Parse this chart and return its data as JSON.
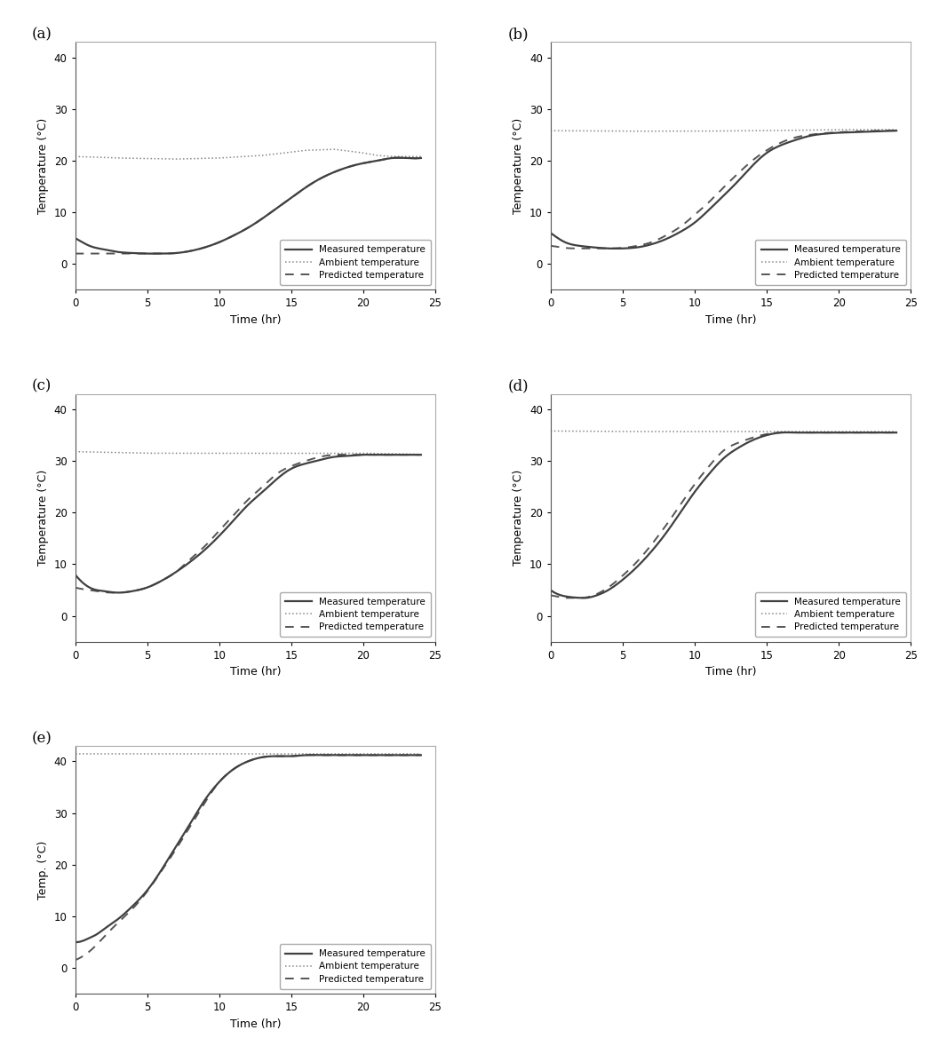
{
  "panels": [
    {
      "label": "(a)",
      "ylabel": "Temperature (°C)",
      "ylim": [
        -5,
        43
      ],
      "yticks": [
        0,
        10,
        20,
        30,
        40
      ],
      "measured_t": [
        0,
        0.5,
        1,
        2,
        3,
        4,
        5,
        6,
        7,
        8,
        9,
        10,
        11,
        12,
        13,
        14,
        15,
        16,
        17,
        18,
        19,
        20,
        21,
        22,
        23,
        24
      ],
      "measured_y": [
        5.0,
        4.2,
        3.5,
        2.8,
        2.3,
        2.1,
        2.0,
        2.0,
        2.1,
        2.5,
        3.2,
        4.2,
        5.5,
        7.0,
        8.8,
        10.8,
        12.8,
        14.8,
        16.5,
        17.8,
        18.8,
        19.5,
        20.0,
        20.5,
        20.5,
        20.5
      ],
      "predicted_t": [
        0,
        0.5,
        1,
        2,
        3,
        4,
        5,
        6,
        7,
        8,
        9,
        10,
        11,
        12,
        13,
        14,
        15,
        16,
        17,
        18,
        19,
        20,
        21,
        22,
        23,
        24
      ],
      "predicted_y": [
        2.0,
        2.0,
        2.0,
        2.0,
        2.0,
        2.0,
        2.0,
        2.0,
        2.1,
        2.5,
        3.2,
        4.2,
        5.5,
        7.0,
        8.8,
        10.8,
        12.8,
        14.8,
        16.5,
        17.8,
        18.8,
        19.5,
        20.0,
        20.5,
        20.5,
        20.5
      ],
      "ambient_t": [
        0,
        3,
        7,
        10,
        13,
        16,
        18,
        20,
        21,
        22,
        24
      ],
      "ambient_y": [
        20.8,
        20.5,
        20.3,
        20.5,
        21.0,
        22.0,
        22.2,
        21.5,
        21.0,
        20.8,
        20.8
      ]
    },
    {
      "label": "(b)",
      "ylabel": "Temperature (°C)",
      "ylim": [
        -5,
        43
      ],
      "yticks": [
        0,
        10,
        20,
        30,
        40
      ],
      "measured_t": [
        0,
        0.5,
        1,
        2,
        3,
        4,
        5,
        6,
        7,
        8,
        9,
        10,
        11,
        12,
        13,
        14,
        15,
        16,
        17,
        18,
        19,
        20,
        21,
        22,
        23,
        24
      ],
      "measured_y": [
        6.0,
        5.0,
        4.2,
        3.5,
        3.2,
        3.0,
        3.0,
        3.2,
        3.8,
        4.8,
        6.2,
        8.0,
        10.5,
        13.2,
        16.0,
        19.0,
        21.5,
        23.0,
        24.0,
        24.8,
        25.2,
        25.4,
        25.5,
        25.6,
        25.7,
        25.8
      ],
      "predicted_t": [
        0,
        0.5,
        1,
        2,
        3,
        4,
        5,
        6,
        7,
        8,
        9,
        10,
        11,
        12,
        13,
        14,
        15,
        16,
        17,
        18,
        19,
        20,
        21,
        22,
        23,
        24
      ],
      "predicted_y": [
        3.5,
        3.3,
        3.1,
        3.0,
        3.0,
        3.0,
        3.1,
        3.5,
        4.2,
        5.5,
        7.2,
        9.5,
        12.0,
        14.8,
        17.5,
        20.0,
        22.0,
        23.5,
        24.5,
        25.0,
        25.3,
        25.5,
        25.6,
        25.7,
        25.8,
        25.8
      ],
      "ambient_t": [
        0,
        5,
        10,
        15,
        20,
        24
      ],
      "ambient_y": [
        25.8,
        25.7,
        25.7,
        25.8,
        26.0,
        26.0
      ]
    },
    {
      "label": "(c)",
      "ylabel": "Temperature (°C)",
      "ylim": [
        -5,
        43
      ],
      "yticks": [
        0,
        10,
        20,
        30,
        40
      ],
      "measured_t": [
        0,
        0.5,
        1,
        1.5,
        2,
        2.5,
        3,
        4,
        5,
        6,
        7,
        8,
        9,
        10,
        11,
        12,
        13,
        14,
        15,
        16,
        17,
        18,
        19,
        20,
        21,
        22,
        23,
        24
      ],
      "measured_y": [
        8.0,
        6.5,
        5.5,
        5.0,
        4.8,
        4.6,
        4.5,
        4.8,
        5.5,
        6.8,
        8.5,
        10.5,
        12.8,
        15.5,
        18.5,
        21.5,
        24.0,
        26.5,
        28.5,
        29.5,
        30.2,
        30.8,
        31.0,
        31.2,
        31.2,
        31.2,
        31.2,
        31.2
      ],
      "predicted_t": [
        0,
        0.5,
        1,
        1.5,
        2,
        2.5,
        3,
        4,
        5,
        6,
        7,
        8,
        9,
        10,
        11,
        12,
        13,
        14,
        15,
        16,
        17,
        18,
        19,
        20,
        21,
        22,
        23,
        24
      ],
      "predicted_y": [
        5.5,
        5.2,
        5.0,
        4.8,
        4.6,
        4.5,
        4.5,
        4.8,
        5.5,
        6.8,
        8.5,
        11.0,
        13.5,
        16.5,
        19.5,
        22.5,
        25.0,
        27.5,
        29.0,
        30.0,
        30.8,
        31.2,
        31.2,
        31.2,
        31.2,
        31.2,
        31.2,
        31.2
      ],
      "ambient_t": [
        0,
        5,
        10,
        15,
        20,
        24
      ],
      "ambient_y": [
        31.8,
        31.5,
        31.5,
        31.5,
        31.5,
        31.3
      ]
    },
    {
      "label": "(d)",
      "ylabel": "Temperature (°C)",
      "ylim": [
        -5,
        43
      ],
      "yticks": [
        0,
        10,
        20,
        30,
        40
      ],
      "measured_t": [
        0,
        0.5,
        1,
        1.5,
        2,
        2.5,
        3,
        4,
        5,
        6,
        7,
        8,
        9,
        10,
        11,
        12,
        13,
        14,
        15,
        16,
        17,
        18,
        19,
        20,
        21,
        22,
        23,
        24
      ],
      "measured_y": [
        5.0,
        4.2,
        3.8,
        3.6,
        3.5,
        3.5,
        3.8,
        5.0,
        7.0,
        9.5,
        12.5,
        16.0,
        20.0,
        24.0,
        27.5,
        30.5,
        32.5,
        34.0,
        35.0,
        35.5,
        35.5,
        35.5,
        35.5,
        35.5,
        35.5,
        35.5,
        35.5,
        35.5
      ],
      "predicted_t": [
        0,
        0.5,
        1,
        1.5,
        2,
        2.5,
        3,
        4,
        5,
        6,
        7,
        8,
        9,
        10,
        11,
        12,
        13,
        14,
        15,
        16,
        17,
        18,
        19,
        20,
        21,
        22,
        23,
        24
      ],
      "predicted_y": [
        4.0,
        3.7,
        3.5,
        3.5,
        3.5,
        3.6,
        4.0,
        5.5,
        7.8,
        10.5,
        13.8,
        17.5,
        21.5,
        25.5,
        29.0,
        32.0,
        33.5,
        34.5,
        35.2,
        35.5,
        35.5,
        35.5,
        35.5,
        35.5,
        35.5,
        35.5,
        35.5,
        35.5
      ],
      "ambient_t": [
        0,
        5,
        10,
        15,
        20,
        24
      ],
      "ambient_y": [
        35.8,
        35.7,
        35.7,
        35.7,
        35.7,
        35.7
      ]
    },
    {
      "label": "(e)",
      "ylabel": "Temp. (°C)",
      "ylim": [
        -5,
        43
      ],
      "yticks": [
        0,
        10,
        20,
        30,
        40
      ],
      "measured_t": [
        0,
        0.5,
        1,
        1.5,
        2,
        3,
        4,
        5,
        6,
        7,
        8,
        9,
        10,
        11,
        12,
        13,
        14,
        15,
        16,
        17,
        18,
        19,
        20,
        21,
        22,
        23,
        24
      ],
      "measured_y": [
        5.0,
        5.2,
        5.8,
        6.5,
        7.5,
        9.5,
        12.0,
        15.0,
        19.0,
        23.5,
        28.0,
        32.5,
        36.0,
        38.5,
        40.0,
        40.8,
        41.0,
        41.0,
        41.2,
        41.2,
        41.2,
        41.2,
        41.2,
        41.2,
        41.2,
        41.2,
        41.2
      ],
      "predicted_t": [
        0,
        0.5,
        1,
        1.5,
        2,
        3,
        4,
        5,
        6,
        7,
        8,
        9,
        10,
        11,
        12,
        13,
        14,
        15,
        16,
        17,
        18,
        19,
        20,
        21,
        22,
        23,
        24
      ],
      "predicted_y": [
        1.5,
        2.2,
        3.2,
        4.5,
        6.0,
        8.8,
        11.5,
        14.8,
        18.8,
        23.0,
        27.5,
        32.0,
        36.0,
        38.5,
        40.0,
        40.8,
        41.0,
        41.0,
        41.2,
        41.2,
        41.2,
        41.2,
        41.2,
        41.2,
        41.2,
        41.2,
        41.2
      ],
      "ambient_t": [
        0,
        5,
        10,
        15,
        20,
        24
      ],
      "ambient_y": [
        41.5,
        41.5,
        41.5,
        41.5,
        41.5,
        41.5
      ]
    }
  ],
  "xlim": [
    0,
    25
  ],
  "xticks": [
    0,
    5,
    10,
    15,
    20,
    25
  ],
  "xlabel": "Time (hr)",
  "legend_labels": [
    "Measured temperature",
    "Ambient temperature",
    "Predicted temperature"
  ],
  "measured_color": "#404040",
  "ambient_color": "#888888",
  "predicted_color": "#555555",
  "figure_bg": "#ffffff",
  "axes_bg": "#ffffff"
}
